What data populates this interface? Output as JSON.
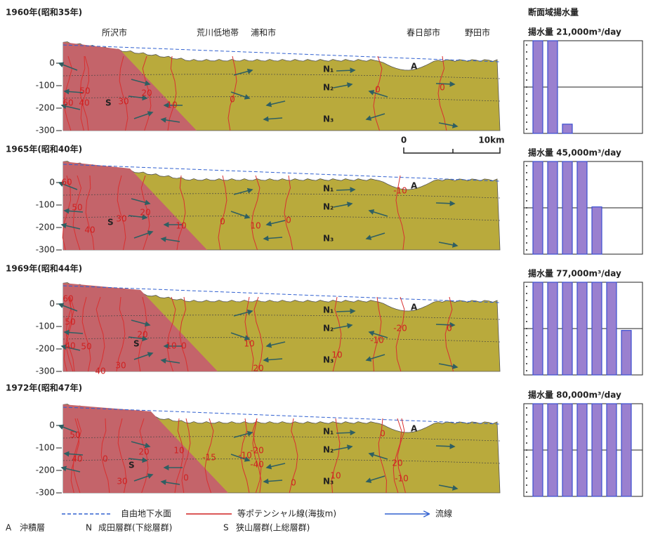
{
  "header": {
    "places": [
      "所沢市",
      "荒川低地帯",
      "浦和市",
      "春日部市",
      "野田市"
    ],
    "pumping_title": "断面域揚水量",
    "scale": [
      "0",
      "10km"
    ]
  },
  "depth_axis": [
    "0",
    "-100",
    "-200",
    "-300"
  ],
  "layer_labels": {
    "n1": "N₁",
    "n2": "N₂",
    "n3": "N₃",
    "a": "A",
    "s": "S"
  },
  "panels": [
    {
      "title": "1960年(昭和35年)",
      "pumping_label": "揚水量 21,000m³/day",
      "bars": [
        1,
        1,
        0.1
      ],
      "contours": [
        "50",
        "60",
        "40",
        "30",
        "20",
        "10",
        "0",
        "0",
        "0"
      ]
    },
    {
      "title": "1965年(昭和40年)",
      "pumping_label": "揚水量 45,000m³/day",
      "bars": [
        1,
        1,
        1,
        1,
        0.51
      ],
      "contours": [
        "60",
        "50",
        "40",
        "30",
        "20",
        "10",
        "0",
        "10",
        "0",
        "-10"
      ]
    },
    {
      "title": "1969年(昭和44年)",
      "pumping_label": "揚水量 77,000m³/day",
      "bars": [
        1,
        1,
        1,
        1,
        1,
        1,
        0.48
      ],
      "contours": [
        "60",
        "50",
        "40",
        "50",
        "40",
        "30",
        "20",
        "10",
        "0",
        "10",
        "20",
        "10",
        "-10",
        "-20",
        "0"
      ]
    },
    {
      "title": "1972年(昭和47年)",
      "pumping_label": "揚水量 80,000m³/day",
      "bars": [
        1,
        1,
        1,
        1,
        1,
        1,
        1
      ],
      "contours": [
        "50",
        "40",
        "0",
        "30",
        "20",
        "10",
        "0",
        "-15",
        "-10",
        "-20",
        "-40",
        "0",
        "10",
        "20",
        "-10",
        "0"
      ]
    }
  ],
  "legend": {
    "lines": [
      "自由地下水面",
      "等ポテンシャル線(海抜m)",
      "流線"
    ],
    "units": [
      {
        "key": "A",
        "label": "沖積層"
      },
      {
        "key": "N",
        "label": "成田層群(下総層群)"
      },
      {
        "key": "S",
        "label": "狭山層群(上総層群)"
      }
    ]
  }
}
